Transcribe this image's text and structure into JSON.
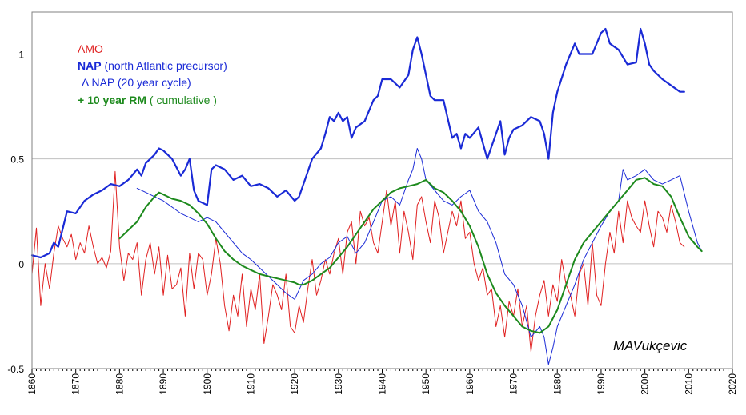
{
  "chart_data": {
    "type": "line",
    "x_range": [
      1860,
      2020
    ],
    "ylim": [
      -0.5,
      1.2
    ],
    "y_ticks": [
      -0.5,
      0,
      0.5,
      1
    ],
    "y_tick_labels": [
      "-0.5",
      "0",
      "0.5",
      "1"
    ],
    "x_ticks": [
      1860,
      1870,
      1880,
      1890,
      1900,
      1910,
      1920,
      1930,
      1940,
      1950,
      1960,
      1970,
      1980,
      1990,
      2000,
      2010,
      2020
    ],
    "x_tick_labels": [
      "1860",
      "1870",
      "1880",
      "1890",
      "1900",
      "1910",
      "1920",
      "1930",
      "1940",
      "1950",
      "1960",
      "1970",
      "1980",
      "1990",
      "2000",
      "2010",
      "2020"
    ],
    "grid": "horizontal",
    "legend_position": "top-left",
    "legend": {
      "amo": "AMO",
      "nap_bold": "NAP",
      "nap_rest": " (north Atlantic precursor)",
      "dnap": "Δ NAP (20 year cycle)",
      "rm_bold": "+ 10 year RM",
      "rm_rest": " ( cumulative )"
    },
    "signature": "MAVukçevic",
    "colors": {
      "amo": "#e02020",
      "nap": "#1a2ad6",
      "dnap": "#1a2ad6",
      "rm": "#1d8a1d",
      "grid": "#c0c0c0"
    },
    "series": [
      {
        "name": "AMO",
        "key": "amo",
        "width": 1.0,
        "x": [
          1860,
          1861,
          1862,
          1863,
          1864,
          1865,
          1866,
          1867,
          1868,
          1869,
          1870,
          1871,
          1872,
          1873,
          1874,
          1875,
          1876,
          1877,
          1878,
          1879,
          1880,
          1881,
          1882,
          1883,
          1884,
          1885,
          1886,
          1887,
          1888,
          1889,
          1890,
          1891,
          1892,
          1893,
          1894,
          1895,
          1896,
          1897,
          1898,
          1899,
          1900,
          1901,
          1902,
          1903,
          1904,
          1905,
          1906,
          1907,
          1908,
          1909,
          1910,
          1911,
          1912,
          1913,
          1914,
          1915,
          1916,
          1917,
          1918,
          1919,
          1920,
          1921,
          1922,
          1923,
          1924,
          1925,
          1926,
          1927,
          1928,
          1929,
          1930,
          1931,
          1932,
          1933,
          1934,
          1935,
          1936,
          1937,
          1938,
          1939,
          1940,
          1941,
          1942,
          1943,
          1944,
          1945,
          1946,
          1947,
          1948,
          1949,
          1950,
          1951,
          1952,
          1953,
          1954,
          1955,
          1956,
          1957,
          1958,
          1959,
          1960,
          1961,
          1962,
          1963,
          1964,
          1965,
          1966,
          1967,
          1968,
          1969,
          1970,
          1971,
          1972,
          1973,
          1974,
          1975,
          1976,
          1977,
          1978,
          1979,
          1980,
          1981,
          1982,
          1983,
          1984,
          1985,
          1986,
          1987,
          1988,
          1989,
          1990,
          1991,
          1992,
          1993,
          1994,
          1995,
          1996,
          1997,
          1998,
          1999,
          2000,
          2001,
          2002,
          2003,
          2004,
          2005,
          2006,
          2007,
          2008,
          2009
        ],
        "y": [
          -0.05,
          0.17,
          -0.2,
          0.0,
          -0.12,
          0.05,
          0.18,
          0.12,
          0.08,
          0.14,
          0.02,
          0.1,
          0.05,
          0.18,
          0.08,
          0.0,
          0.03,
          -0.02,
          0.06,
          0.44,
          0.08,
          -0.08,
          0.05,
          0.02,
          0.1,
          -0.15,
          0.02,
          0.1,
          -0.05,
          0.08,
          -0.15,
          0.04,
          -0.12,
          -0.1,
          -0.02,
          -0.25,
          0.05,
          -0.12,
          0.05,
          0.02,
          -0.15,
          -0.05,
          0.12,
          0.0,
          -0.2,
          -0.32,
          -0.15,
          -0.25,
          -0.05,
          -0.3,
          -0.12,
          -0.22,
          -0.05,
          -0.38,
          -0.25,
          -0.1,
          -0.15,
          -0.22,
          -0.05,
          -0.3,
          -0.33,
          -0.2,
          -0.28,
          -0.12,
          0.02,
          -0.15,
          -0.08,
          0.02,
          -0.05,
          0.05,
          0.12,
          -0.05,
          0.15,
          0.2,
          0.0,
          0.25,
          0.18,
          0.22,
          0.1,
          0.05,
          0.2,
          0.35,
          0.18,
          0.3,
          0.05,
          0.25,
          0.15,
          0.02,
          0.28,
          0.32,
          0.2,
          0.1,
          0.3,
          0.22,
          0.05,
          0.15,
          0.25,
          0.18,
          0.3,
          0.12,
          0.15,
          0.0,
          -0.08,
          -0.02,
          -0.15,
          -0.12,
          -0.3,
          -0.2,
          -0.35,
          -0.18,
          -0.25,
          -0.12,
          -0.3,
          -0.2,
          -0.42,
          -0.25,
          -0.15,
          -0.08,
          -0.25,
          -0.1,
          -0.18,
          0.02,
          -0.1,
          -0.15,
          -0.25,
          -0.05,
          0.0,
          -0.2,
          0.1,
          -0.15,
          -0.2,
          0.0,
          0.15,
          0.05,
          0.25,
          0.1,
          0.3,
          0.22,
          0.18,
          0.15,
          0.3,
          0.18,
          0.08,
          0.25,
          0.22,
          0.15,
          0.28,
          0.2,
          0.1,
          0.08
        ]
      },
      {
        "name": "NAP",
        "key": "nap",
        "width": 2.2,
        "x": [
          1860,
          1862,
          1864,
          1865,
          1866,
          1868,
          1870,
          1872,
          1874,
          1876,
          1878,
          1880,
          1882,
          1884,
          1885,
          1886,
          1888,
          1889,
          1890,
          1892,
          1894,
          1895,
          1896,
          1897,
          1898,
          1900,
          1901,
          1902,
          1904,
          1906,
          1908,
          1910,
          1912,
          1914,
          1916,
          1918,
          1920,
          1921,
          1922,
          1924,
          1926,
          1927,
          1928,
          1929,
          1930,
          1931,
          1932,
          1933,
          1934,
          1936,
          1938,
          1939,
          1940,
          1942,
          1944,
          1946,
          1947,
          1948,
          1949,
          1950,
          1951,
          1952,
          1954,
          1956,
          1957,
          1958,
          1959,
          1960,
          1962,
          1964,
          1966,
          1967,
          1968,
          1969,
          1970,
          1972,
          1974,
          1976,
          1977,
          1978,
          1979,
          1980,
          1982,
          1984,
          1985,
          1986,
          1988,
          1990,
          1991,
          1992,
          1994,
          1996,
          1998,
          1999,
          2000,
          2001,
          2002,
          2004,
          2006,
          2008,
          2009
        ],
        "y": [
          0.04,
          0.03,
          0.05,
          0.1,
          0.08,
          0.25,
          0.24,
          0.3,
          0.33,
          0.35,
          0.38,
          0.37,
          0.4,
          0.45,
          0.42,
          0.48,
          0.52,
          0.55,
          0.54,
          0.5,
          0.42,
          0.45,
          0.5,
          0.35,
          0.3,
          0.28,
          0.45,
          0.47,
          0.45,
          0.4,
          0.42,
          0.37,
          0.38,
          0.36,
          0.32,
          0.35,
          0.3,
          0.32,
          0.38,
          0.5,
          0.55,
          0.62,
          0.7,
          0.68,
          0.72,
          0.68,
          0.7,
          0.6,
          0.65,
          0.68,
          0.78,
          0.8,
          0.88,
          0.88,
          0.84,
          0.9,
          1.02,
          1.08,
          1.0,
          0.9,
          0.8,
          0.78,
          0.78,
          0.6,
          0.62,
          0.55,
          0.62,
          0.6,
          0.65,
          0.5,
          0.62,
          0.68,
          0.52,
          0.6,
          0.64,
          0.66,
          0.7,
          0.68,
          0.62,
          0.5,
          0.72,
          0.82,
          0.95,
          1.05,
          1.0,
          1.0,
          1.0,
          1.1,
          1.12,
          1.05,
          1.02,
          0.95,
          0.96,
          1.12,
          1.05,
          0.95,
          0.92,
          0.88,
          0.85,
          0.82,
          0.82
        ]
      },
      {
        "name": "Δ NAP (20 year cycle)",
        "key": "dnap",
        "width": 1.0,
        "x": [
          1884,
          1886,
          1888,
          1890,
          1892,
          1894,
          1896,
          1898,
          1900,
          1902,
          1904,
          1906,
          1908,
          1910,
          1912,
          1914,
          1916,
          1918,
          1920,
          1922,
          1924,
          1926,
          1928,
          1930,
          1932,
          1934,
          1936,
          1938,
          1940,
          1942,
          1944,
          1946,
          1947,
          1948,
          1949,
          1950,
          1952,
          1954,
          1956,
          1958,
          1960,
          1962,
          1964,
          1966,
          1968,
          1970,
          1972,
          1974,
          1976,
          1977,
          1978,
          1979,
          1980,
          1982,
          1984,
          1986,
          1988,
          1990,
          1992,
          1994,
          1995,
          1996,
          1998,
          2000,
          2002,
          2004,
          2006,
          2008,
          2010,
          2012,
          2013
        ],
        "y": [
          0.36,
          0.34,
          0.32,
          0.3,
          0.27,
          0.24,
          0.22,
          0.2,
          0.22,
          0.2,
          0.15,
          0.1,
          0.05,
          0.02,
          -0.02,
          -0.06,
          -0.1,
          -0.14,
          -0.17,
          -0.08,
          -0.05,
          0.0,
          0.03,
          0.1,
          0.13,
          0.05,
          0.1,
          0.2,
          0.3,
          0.32,
          0.28,
          0.4,
          0.45,
          0.55,
          0.5,
          0.4,
          0.35,
          0.3,
          0.28,
          0.32,
          0.35,
          0.25,
          0.2,
          0.1,
          -0.05,
          -0.1,
          -0.2,
          -0.35,
          -0.3,
          -0.35,
          -0.48,
          -0.4,
          -0.3,
          -0.2,
          -0.1,
          0.02,
          0.1,
          0.18,
          0.25,
          0.3,
          0.45,
          0.4,
          0.42,
          0.45,
          0.4,
          0.38,
          0.4,
          0.42,
          0.25,
          0.1,
          0.06
        ]
      },
      {
        "name": "+ 10 year RM ( cumulative )",
        "key": "rm",
        "width": 2.0,
        "x": [
          1880,
          1882,
          1884,
          1886,
          1888,
          1889,
          1890,
          1892,
          1894,
          1896,
          1898,
          1900,
          1902,
          1904,
          1906,
          1908,
          1910,
          1912,
          1914,
          1916,
          1918,
          1920,
          1921,
          1922,
          1924,
          1926,
          1928,
          1930,
          1932,
          1934,
          1936,
          1938,
          1940,
          1942,
          1944,
          1946,
          1948,
          1950,
          1952,
          1954,
          1956,
          1958,
          1960,
          1962,
          1964,
          1966,
          1968,
          1970,
          1972,
          1974,
          1976,
          1978,
          1980,
          1982,
          1984,
          1986,
          1988,
          1990,
          1992,
          1994,
          1996,
          1998,
          2000,
          2002,
          2004,
          2006,
          2008,
          2010,
          2012,
          2013
        ],
        "y": [
          0.12,
          0.16,
          0.2,
          0.27,
          0.32,
          0.34,
          0.33,
          0.31,
          0.3,
          0.28,
          0.24,
          0.19,
          0.12,
          0.06,
          0.02,
          -0.01,
          -0.03,
          -0.05,
          -0.06,
          -0.07,
          -0.08,
          -0.09,
          -0.1,
          -0.1,
          -0.08,
          -0.05,
          -0.02,
          0.03,
          0.08,
          0.14,
          0.2,
          0.26,
          0.3,
          0.34,
          0.36,
          0.37,
          0.38,
          0.4,
          0.36,
          0.34,
          0.3,
          0.25,
          0.18,
          0.08,
          -0.05,
          -0.14,
          -0.2,
          -0.25,
          -0.3,
          -0.32,
          -0.33,
          -0.3,
          -0.22,
          -0.1,
          0.02,
          0.1,
          0.15,
          0.2,
          0.25,
          0.3,
          0.35,
          0.4,
          0.41,
          0.38,
          0.37,
          0.32,
          0.22,
          0.13,
          0.08,
          0.06
        ]
      }
    ]
  }
}
